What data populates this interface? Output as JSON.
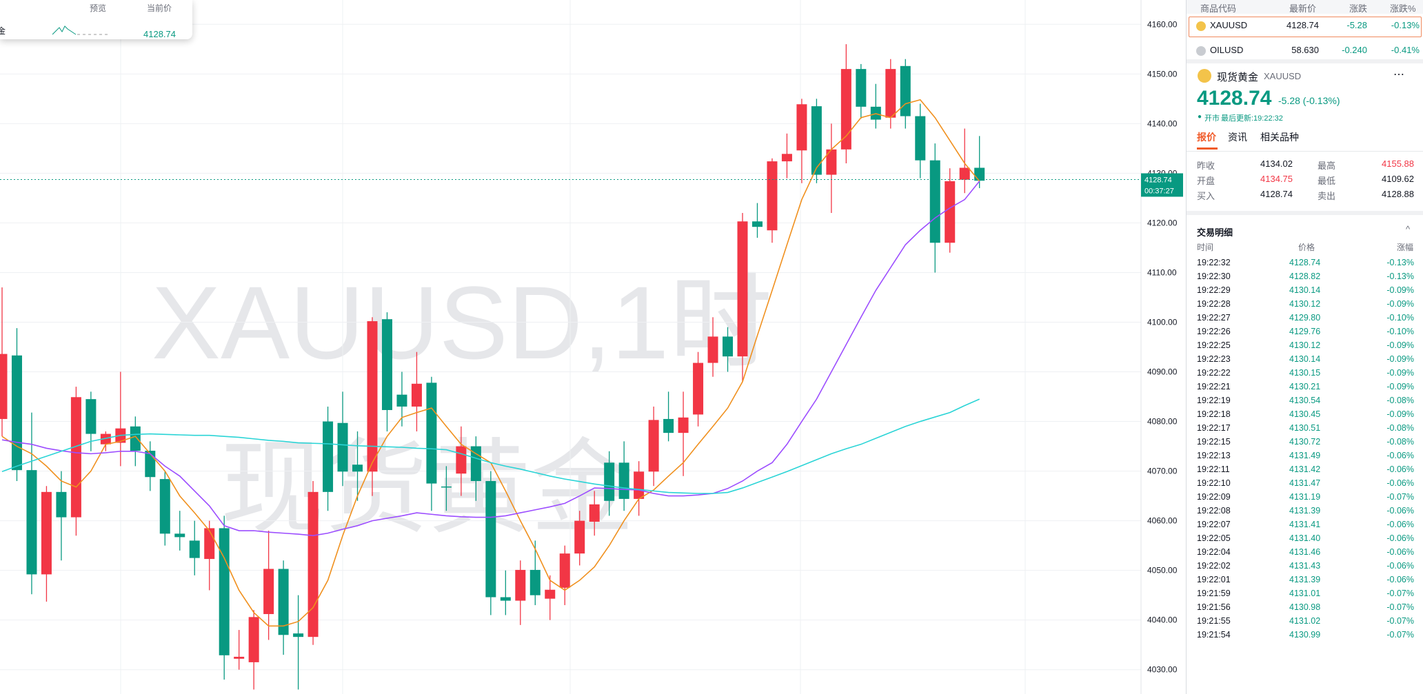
{
  "chart_data": {
    "type": "candlestick",
    "watermark": [
      "XAUUSD,1时",
      "现货黄金"
    ],
    "open": [
      4093.6,
      4070.2,
      4049.2,
      4065.8,
      4060.7,
      4084.9,
      4077.5,
      4077.5,
      4078.6,
      4074.1,
      4068.8,
      4057.4,
      4056.7,
      4052.5,
      4058.5,
      4032.9,
      4032.6,
      4040.6,
      4050.3,
      4037,
      4036.6,
      4065.8,
      4065.8,
      4069.9,
      4069.9,
      4100.2,
      4082.3,
      4083,
      4087.6,
      4067.5,
      4066.7,
      4075,
      4068,
      4044.6,
      4043.9,
      4050.1,
      4045,
      4046.1,
      4053.4,
      4060,
      4063.3,
      4064,
      4064.4,
      4069.9,
      4080.3,
      4077.7,
      4080.8,
      4091.8,
      4097.1,
      4093.1,
      4120.3,
      4119.2,
      4132.4,
      4133.9,
      4143.9,
      4129.7,
      4134.8,
      4151,
      4143.4,
      4140.8,
      4151,
      4141.5,
      4132.6,
      4116,
      4128.4,
      4131.1,
      4128.5
    ],
    "high": [
      4107,
      4098.8,
      4081.8,
      4067,
      4070,
      4087,
      4086,
      4078,
      4090,
      4081,
      4076,
      4070,
      4062,
      4060,
      4060,
      4061,
      4038,
      4042,
      4058,
      4052,
      4045,
      4068,
      4083,
      4086,
      4078,
      4101,
      4102,
      4090,
      4094,
      4089,
      4071,
      4079,
      4077,
      4070,
      4050,
      4052,
      4056,
      4049,
      4055,
      4062,
      4066,
      4074,
      4076,
      4072,
      4083,
      4086,
      4086,
      4094,
      4101,
      4099,
      4122,
      4124,
      4133,
      4138,
      4145,
      4145,
      4140,
      4156,
      4152,
      4148,
      4153,
      4153,
      4144,
      4136,
      4131,
      4139,
      4137.5
    ],
    "low": [
      4077,
      4068,
      4045.2,
      4043.7,
      4052,
      4057,
      4074,
      4074,
      4071,
      4071,
      4066,
      4055,
      4054,
      4049,
      4046,
      4028,
      4030,
      4026,
      4036,
      4033,
      4026,
      4035,
      4062,
      4067,
      4064,
      4065,
      4078,
      4079,
      4078,
      4062,
      4062,
      4065,
      4064,
      4041,
      4041,
      4039,
      4043,
      4040,
      4043,
      4051,
      4057,
      4061,
      4062,
      4061,
      4067,
      4076,
      4069,
      4079,
      4089,
      4090,
      4088,
      4117,
      4116,
      4129,
      4128,
      4128,
      4122,
      4132,
      4141,
      4139,
      4139,
      4139,
      4129,
      4110,
      4114,
      4126,
      4127
    ],
    "close": [
      4080.5,
      4093.3,
      4070.2,
      4049.2,
      4065.8,
      4060.7,
      4084.5,
      4075.4,
      4075.7,
      4079,
      4074.1,
      4068.4,
      4057.4,
      4056,
      4052.3,
      4058.5,
      4032.2,
      4031.5,
      4041.2,
      4050.3,
      4037.3,
      4036.6,
      4080,
      4079.7,
      4071.3,
      4069.9,
      4100.6,
      4085.4,
      4083,
      4087.8,
      4066.9,
      4069.5,
      4075,
      4068,
      4044.6,
      4043.9,
      4050.1,
      4044.3,
      4046.5,
      4053.4,
      4059.8,
      4071.7,
      4071.7,
      4064.4,
      4069.9,
      4080.5,
      4077.7,
      4081.4,
      4091.8,
      4097.1,
      4093.1,
      4120.3,
      4118.5,
      4132.4,
      4134.6,
      4143.5,
      4129.7,
      4134.8,
      4151,
      4143.4,
      4141.2,
      4151.6,
      4141.5,
      4132.6,
      4116,
      4128.7,
      4131.1
    ],
    "up_color": "#089981",
    "down_color": "#f23645",
    "series": [
      {
        "color": "#f0901e",
        "values": [
          4077,
          4075,
          4073.5,
          4071,
          4068,
          4066.8,
          4070,
          4075.4,
          4076,
          4077,
          4073.5,
          4070,
          4065,
          4061.6,
          4058,
          4052.5,
          4046,
          4041.5,
          4038.8,
          4038.8,
          4039.7,
          4042.5,
          4048,
          4057,
          4065,
          4071.7,
          4077,
          4080.8,
          4081.8,
          4082.7,
          4079,
          4075.4,
          4073.5,
          4071.7,
          4066,
          4060,
          4054.3,
          4048,
          4046,
          4048,
          4050.7,
          4055,
          4060,
          4064.4,
          4066.2,
          4069,
          4071.7,
          4075.4,
          4079,
          4082.7,
          4088,
          4097.3,
          4106.4,
          4115.6,
          4124.7,
          4131.1,
          4134.8,
          4137.5,
          4141.2,
          4142,
          4141.2,
          4144,
          4144.8,
          4141.2,
          4136.6,
          4132,
          4128.4
        ]
      },
      {
        "color": "#9c4dff",
        "values": [
          4076.3,
          4075.8,
          4075.4,
          4074.6,
          4074.1,
          4073.7,
          4073.5,
          4073.7,
          4074,
          4074,
          4073.5,
          4071,
          4069,
          4066,
          4063,
          4059,
          4058,
          4058,
          4057.7,
          4057.5,
          4057.3,
          4057,
          4057.5,
          4058.3,
          4059,
          4060,
          4060.5,
          4061,
          4061.6,
          4061.3,
          4061,
          4060.8,
          4060.7,
          4060.7,
          4061,
          4061.6,
          4062.2,
          4062.8,
          4063.5,
          4065,
          4066.6,
          4066.5,
          4066.3,
          4066.2,
          4065.5,
          4065,
          4065,
          4065.2,
          4065.5,
          4066.5,
          4068,
          4070,
          4071.7,
          4075.4,
          4080,
          4084.5,
          4090,
          4095.5,
          4101,
          4106.4,
          4111,
          4115.6,
          4118.5,
          4121,
          4123,
          4124.7,
          4128.4
        ]
      },
      {
        "color": "#2ad4d6",
        "values": [
          4069.9,
          4071,
          4072,
          4073,
          4074,
          4075,
          4076,
          4076.6,
          4077.2,
          4077.4,
          4077.5,
          4077.4,
          4077.3,
          4077.2,
          4077.2,
          4077,
          4076.8,
          4076.5,
          4076.2,
          4076,
          4075.7,
          4075.6,
          4075.5,
          4075.3,
          4075.1,
          4075,
          4074.9,
          4074.8,
          4074.6,
          4074.5,
          4074.3,
          4073.5,
          4072.6,
          4071.7,
          4071,
          4070.4,
          4069.7,
          4069,
          4068.4,
          4067.9,
          4067.4,
          4067,
          4066.6,
          4066.3,
          4066,
          4065.7,
          4065.6,
          4065.5,
          4065.5,
          4065.7,
          4066.6,
          4067.7,
          4068.8,
          4069.9,
          4071.1,
          4072.3,
          4073.5,
          4074.5,
          4075.4,
          4076.6,
          4077.8,
          4079,
          4080,
          4080.9,
          4081.8,
          4083.2,
          4084.5
        ]
      }
    ],
    "ylim": [
      4025.1,
      4164.9
    ],
    "yticks": [
      {
        "value": 4030,
        "label": "4030.00"
      },
      {
        "value": 4040,
        "label": "4040.00"
      },
      {
        "value": 4050,
        "label": "4050.00"
      },
      {
        "value": 4060,
        "label": "4060.00"
      },
      {
        "value": 4070,
        "label": "4070.00"
      },
      {
        "value": 4080,
        "label": "4080.00"
      },
      {
        "value": 4090,
        "label": "4090.00"
      },
      {
        "value": 4100,
        "label": "4100.00"
      },
      {
        "value": 4110,
        "label": "4110.00"
      },
      {
        "value": 4120,
        "label": "4120.00"
      },
      {
        "value": 4130,
        "label": "4130.00"
      },
      {
        "value": 4140,
        "label": "4140.00"
      },
      {
        "value": 4150,
        "label": "4150.00"
      },
      {
        "value": 4160,
        "label": "4160.00"
      }
    ],
    "grid": true,
    "last_price": 4128.74,
    "countdown": "00:37:27"
  },
  "popup": {
    "headers": [
      "预览",
      "当前价"
    ],
    "row": {
      "name": "金",
      "price": "4128.74"
    }
  },
  "watchlist": {
    "headers": [
      "商品代码",
      "最新价",
      "涨跌",
      "涨跌%"
    ],
    "rows": [
      [
        "XAUUSD",
        "4128.74",
        "-5.28",
        "-0.13%"
      ],
      [
        "OILUSD",
        "58.630",
        "-0.240",
        "-0.41%"
      ]
    ]
  },
  "quote": {
    "name": "现货黄金",
    "symbol": "XAUUSD",
    "price": "4128.74",
    "change": "-5.28 (-0.13%)",
    "status": "开市",
    "updated": "最后更新:19:22:32",
    "tabs": [
      "报价",
      "资讯",
      "相关品种"
    ],
    "stats": [
      [
        "昨收",
        "4134.02",
        "最高",
        "4155.88"
      ],
      [
        "开盘",
        "4134.75",
        "最低",
        "4109.62"
      ],
      [
        "买入",
        "4128.74",
        "卖出",
        "4128.88"
      ]
    ]
  },
  "trades": {
    "title": "交易明细",
    "headers": [
      "时间",
      "价格",
      "涨幅"
    ],
    "rows": [
      [
        "19:22:32",
        "4128.74",
        "-0.13%"
      ],
      [
        "19:22:30",
        "4128.82",
        "-0.13%"
      ],
      [
        "19:22:29",
        "4130.14",
        "-0.09%"
      ],
      [
        "19:22:28",
        "4130.12",
        "-0.09%"
      ],
      [
        "19:22:27",
        "4129.80",
        "-0.10%"
      ],
      [
        "19:22:26",
        "4129.76",
        "-0.10%"
      ],
      [
        "19:22:25",
        "4130.12",
        "-0.09%"
      ],
      [
        "19:22:23",
        "4130.14",
        "-0.09%"
      ],
      [
        "19:22:22",
        "4130.15",
        "-0.09%"
      ],
      [
        "19:22:21",
        "4130.21",
        "-0.09%"
      ],
      [
        "19:22:19",
        "4130.54",
        "-0.08%"
      ],
      [
        "19:22:18",
        "4130.45",
        "-0.09%"
      ],
      [
        "19:22:17",
        "4130.51",
        "-0.08%"
      ],
      [
        "19:22:15",
        "4130.72",
        "-0.08%"
      ],
      [
        "19:22:13",
        "4131.49",
        "-0.06%"
      ],
      [
        "19:22:11",
        "4131.42",
        "-0.06%"
      ],
      [
        "19:22:10",
        "4131.47",
        "-0.06%"
      ],
      [
        "19:22:09",
        "4131.19",
        "-0.07%"
      ],
      [
        "19:22:08",
        "4131.39",
        "-0.06%"
      ],
      [
        "19:22:07",
        "4131.41",
        "-0.06%"
      ],
      [
        "19:22:05",
        "4131.40",
        "-0.06%"
      ],
      [
        "19:22:04",
        "4131.46",
        "-0.06%"
      ],
      [
        "19:22:02",
        "4131.43",
        "-0.06%"
      ],
      [
        "19:22:01",
        "4131.39",
        "-0.06%"
      ],
      [
        "19:21:59",
        "4131.01",
        "-0.07%"
      ],
      [
        "19:21:56",
        "4130.98",
        "-0.07%"
      ],
      [
        "19:21:55",
        "4131.02",
        "-0.07%"
      ],
      [
        "19:21:54",
        "4130.99",
        "-0.07%"
      ]
    ]
  }
}
